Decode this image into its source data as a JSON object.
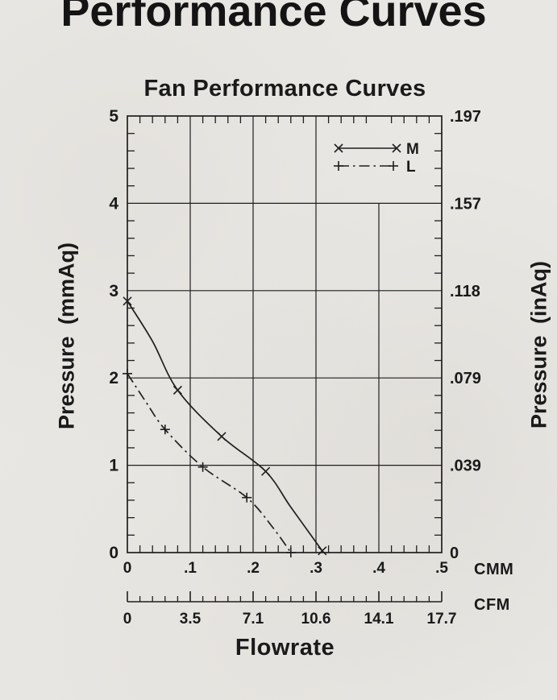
{
  "page": {
    "title": "Performance Curves"
  },
  "ink_color": "#1f1f1f",
  "paper_color": "#e9e7e3",
  "chart_data": {
    "type": "line",
    "title": "Fan Performance Curves",
    "xlabel": "Flowrate",
    "x_primary": {
      "unit": "CMM",
      "range": [
        0,
        0.5
      ],
      "ticks": [
        0,
        0.1,
        0.2,
        0.3,
        0.4,
        0.5
      ],
      "labels": [
        "0",
        ".1",
        ".2",
        ".3",
        ".4",
        ".5"
      ],
      "minor_step": 0.02
    },
    "x_secondary": {
      "unit": "CFM",
      "range": [
        0,
        17.7
      ],
      "labels": [
        "0",
        "3.5",
        "7.1",
        "10.6",
        "14.1",
        "17.7"
      ],
      "note": "labels placed at same positions as CMM major ticks"
    },
    "y_left": {
      "label": "Pressure (mmAq)",
      "range": [
        0,
        5
      ],
      "ticks": [
        0,
        1,
        2,
        3,
        4,
        5
      ],
      "labels": [
        "0",
        "1",
        "2",
        "3",
        "4",
        "5"
      ],
      "minor_step": 0.2
    },
    "y_right": {
      "label": "Pressure (inAq)",
      "tick_values": [
        5,
        4,
        3,
        2,
        1,
        0
      ],
      "labels": [
        ".197",
        ".157",
        ".118",
        ".079",
        ".039",
        "0"
      ]
    },
    "grid": {
      "horizontal": [
        1,
        2,
        3,
        4
      ],
      "vertical_full": [
        0.1,
        0.2,
        0.3
      ],
      "vertical_partial": [
        {
          "x": 0.4,
          "from_y": 4,
          "to_y": 0
        }
      ]
    },
    "legend": {
      "position": "top-right",
      "entries": [
        "M",
        "L"
      ]
    },
    "series": [
      {
        "name": "M",
        "marker": "x",
        "line_style": "solid",
        "points": [
          [
            0,
            2.88
          ],
          [
            0.08,
            1.86
          ],
          [
            0.15,
            1.33
          ],
          [
            0.22,
            0.93
          ],
          [
            0.31,
            0.02
          ]
        ],
        "draw_points": [
          [
            0,
            2.88
          ],
          [
            0.04,
            2.42
          ],
          [
            0.08,
            1.86
          ],
          [
            0.15,
            1.33
          ],
          [
            0.22,
            0.93
          ],
          [
            0.26,
            0.52
          ],
          [
            0.31,
            0.02
          ]
        ]
      },
      {
        "name": "L",
        "marker": "+",
        "line_style": "dash-dot",
        "points": [
          [
            0,
            2.05
          ],
          [
            0.06,
            1.41
          ],
          [
            0.12,
            0.98
          ],
          [
            0.19,
            0.63
          ],
          [
            0.26,
            0.0
          ]
        ],
        "draw_points": [
          [
            0,
            2.05
          ],
          [
            0.03,
            1.72
          ],
          [
            0.06,
            1.41
          ],
          [
            0.12,
            0.98
          ],
          [
            0.19,
            0.63
          ],
          [
            0.23,
            0.3
          ],
          [
            0.26,
            0.0
          ]
        ]
      }
    ]
  }
}
